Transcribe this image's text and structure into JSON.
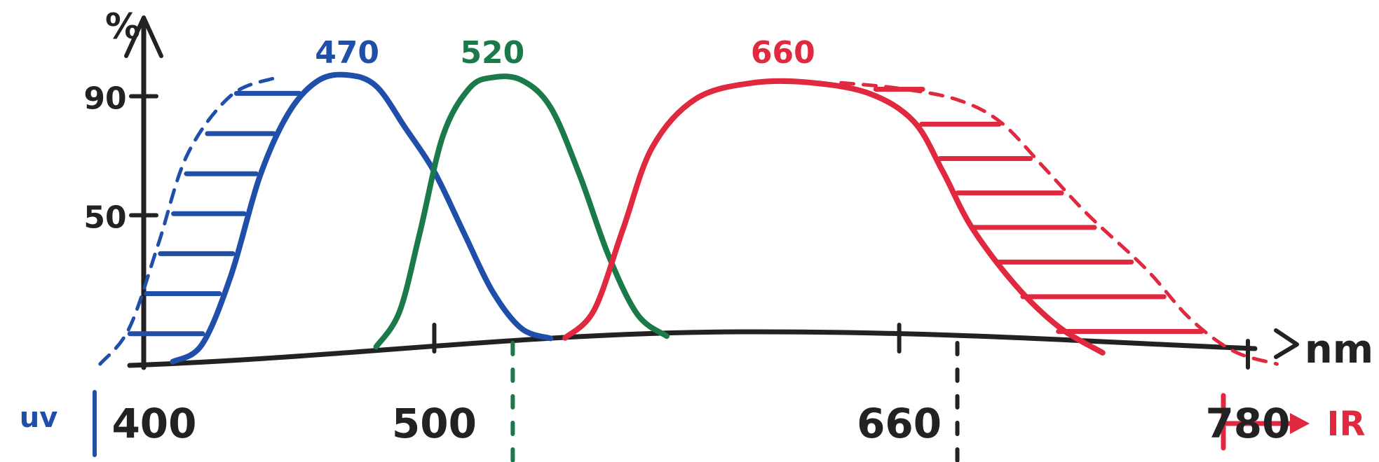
{
  "chart_data": {
    "type": "line",
    "title": "",
    "ylabel": "%",
    "xlabel": "nm",
    "xlim": [
      400,
      780
    ],
    "ylim": [
      0,
      100
    ],
    "x_ticks": [
      400,
      500,
      660,
      780
    ],
    "y_ticks": [
      50,
      90
    ],
    "series": [
      {
        "name": "470",
        "color": "#1f4fa8",
        "style": "solid",
        "points": [
          [
            410,
            0
          ],
          [
            420,
            5
          ],
          [
            430,
            28
          ],
          [
            440,
            62
          ],
          [
            450,
            84
          ],
          [
            460,
            95
          ],
          [
            470,
            97
          ],
          [
            480,
            93
          ],
          [
            490,
            78
          ],
          [
            500,
            62
          ],
          [
            510,
            40
          ],
          [
            520,
            18
          ],
          [
            530,
            4
          ],
          [
            540,
            0
          ]
        ]
      },
      {
        "name": "470 extension",
        "color": "#1f4fa8",
        "style": "dashed",
        "points": [
          [
            385,
            0
          ],
          [
            395,
            12
          ],
          [
            405,
            40
          ],
          [
            415,
            70
          ],
          [
            430,
            90
          ],
          [
            445,
            96
          ]
        ]
      },
      {
        "name": "520",
        "color": "#1a7a4a",
        "style": "solid",
        "points": [
          [
            480,
            0
          ],
          [
            488,
            12
          ],
          [
            495,
            40
          ],
          [
            503,
            75
          ],
          [
            512,
            92
          ],
          [
            520,
            96
          ],
          [
            530,
            95
          ],
          [
            540,
            85
          ],
          [
            550,
            60
          ],
          [
            560,
            30
          ],
          [
            570,
            8
          ],
          [
            580,
            0
          ]
        ]
      },
      {
        "name": "660",
        "color": "#e0283e",
        "style": "solid",
        "points": [
          [
            545,
            0
          ],
          [
            555,
            10
          ],
          [
            565,
            40
          ],
          [
            575,
            70
          ],
          [
            590,
            88
          ],
          [
            610,
            94
          ],
          [
            630,
            94
          ],
          [
            650,
            90
          ],
          [
            665,
            80
          ],
          [
            675,
            62
          ],
          [
            685,
            42
          ],
          [
            700,
            22
          ],
          [
            715,
            8
          ],
          [
            730,
            0
          ]
        ]
      },
      {
        "name": "660 extension",
        "color": "#e0283e",
        "style": "dashed",
        "points": [
          [
            640,
            94
          ],
          [
            660,
            92
          ],
          [
            680,
            88
          ],
          [
            695,
            80
          ],
          [
            710,
            64
          ],
          [
            725,
            48
          ],
          [
            745,
            30
          ],
          [
            760,
            14
          ],
          [
            775,
            4
          ],
          [
            790,
            0
          ]
        ]
      }
    ],
    "bottom_labels": {
      "left": "uv",
      "right": "IR"
    }
  }
}
